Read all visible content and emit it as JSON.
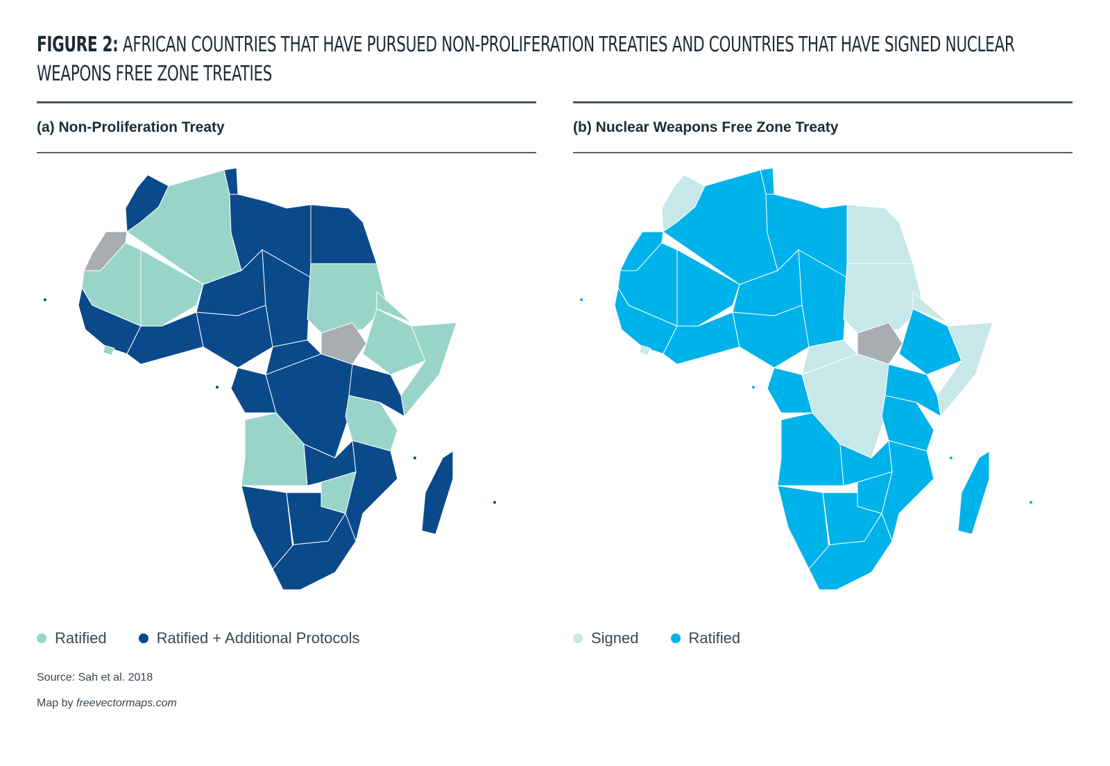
{
  "figure": {
    "label": "FIGURE 2:",
    "title": "AFRICAN COUNTRIES THAT HAVE PURSUED NON-PROLIFERATION TREATIES AND COUNTRIES THAT HAVE SIGNED NUCLEAR WEAPONS FREE ZONE TREATIES"
  },
  "panels": [
    {
      "title": "(a) Non-Proliferation Treaty",
      "legend": [
        {
          "label": "Ratified",
          "color": "#98d5c8"
        },
        {
          "label": "Ratified + Additional Protocols",
          "color": "#0a4a8b"
        }
      ],
      "no_data_color": "#a9acb1"
    },
    {
      "title": "(b) Nuclear Weapons Free Zone Treaty",
      "legend": [
        {
          "label": "Signed",
          "color": "#c7e8e8"
        },
        {
          "label": "Ratified",
          "color": "#00b2ea"
        }
      ],
      "no_data_color": "#a9acb1"
    }
  ],
  "source": "Source: Sah et al. 2018",
  "credit_prefix": "Map by",
  "credit_site": "freevectormaps.com"
}
